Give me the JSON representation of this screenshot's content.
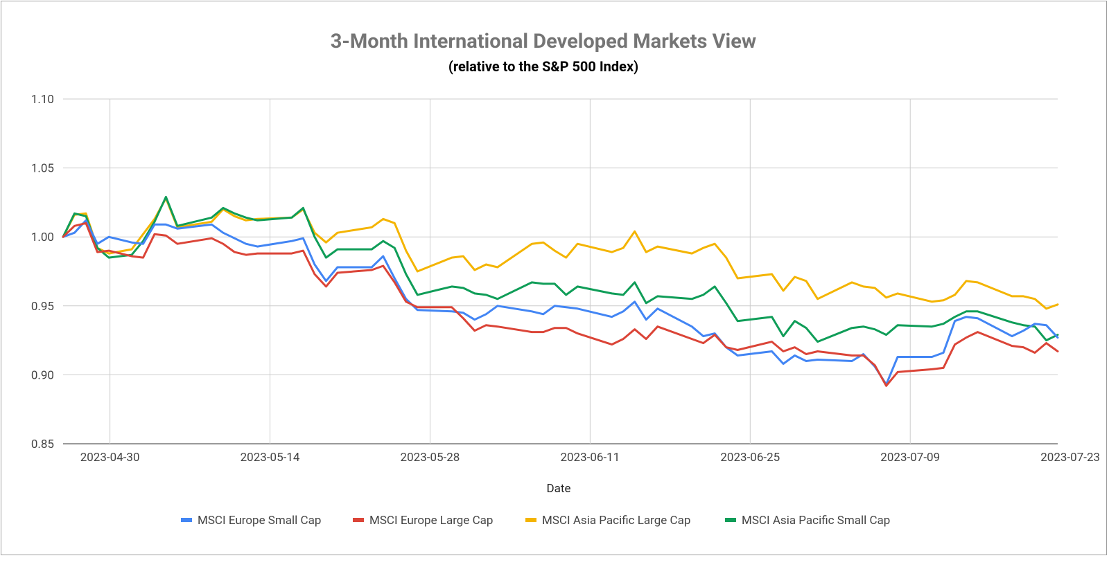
{
  "chart_data": {
    "type": "line",
    "title": "3-Month International Developed Markets View",
    "subtitle": "(relative to the S&P 500 Index)",
    "xlabel": "Date",
    "ylabel": "",
    "ylim": [
      0.85,
      1.1
    ],
    "yticks": [
      "1.10",
      "1.05",
      "1.00",
      "0.95",
      "0.90",
      "0.85"
    ],
    "ytick_values": [
      1.1,
      1.05,
      1.0,
      0.95,
      0.9,
      0.85
    ],
    "x_start_day": -4.1,
    "x_end_day": 82.9,
    "xticks": [
      {
        "label": "2023-04-30",
        "day": 0
      },
      {
        "label": "2023-05-14",
        "day": 14
      },
      {
        "label": "2023-05-28",
        "day": 28
      },
      {
        "label": "2023-06-11",
        "day": 42
      },
      {
        "label": "2023-06-25",
        "day": 56
      },
      {
        "label": "2023-07-09",
        "day": 70
      },
      {
        "label": "2023-07-23",
        "day": 84
      }
    ],
    "grid": true,
    "legend_position": "bottom",
    "series": [
      {
        "name": "MSCI Europe Small Cap",
        "color": "#4285f4",
        "points": [
          [
            -4.1,
            1.0
          ],
          [
            -3.1,
            1.003
          ],
          [
            -2.1,
            1.012
          ],
          [
            -1.1,
            0.995
          ],
          [
            -0.1,
            1.0
          ],
          [
            1.9,
            0.996
          ],
          [
            2.9,
            0.995
          ],
          [
            3.9,
            1.009
          ],
          [
            4.9,
            1.009
          ],
          [
            5.9,
            1.006
          ],
          [
            8.9,
            1.009
          ],
          [
            9.9,
            1.003
          ],
          [
            10.9,
            0.999
          ],
          [
            11.9,
            0.995
          ],
          [
            12.9,
            0.993
          ],
          [
            15.9,
            0.997
          ],
          [
            16.9,
            0.999
          ],
          [
            17.9,
            0.98
          ],
          [
            18.9,
            0.968
          ],
          [
            19.9,
            0.978
          ],
          [
            22.9,
            0.978
          ],
          [
            23.9,
            0.986
          ],
          [
            24.9,
            0.97
          ],
          [
            25.9,
            0.955
          ],
          [
            26.9,
            0.947
          ],
          [
            29.9,
            0.946
          ],
          [
            30.9,
            0.945
          ],
          [
            31.9,
            0.94
          ],
          [
            32.9,
            0.944
          ],
          [
            33.9,
            0.95
          ],
          [
            36.9,
            0.946
          ],
          [
            37.9,
            0.944
          ],
          [
            38.9,
            0.95
          ],
          [
            39.9,
            0.949
          ],
          [
            40.9,
            0.948
          ],
          [
            43.9,
            0.942
          ],
          [
            44.9,
            0.946
          ],
          [
            45.9,
            0.953
          ],
          [
            46.9,
            0.94
          ],
          [
            47.9,
            0.948
          ],
          [
            50.9,
            0.935
          ],
          [
            51.9,
            0.928
          ],
          [
            52.9,
            0.93
          ],
          [
            53.9,
            0.92
          ],
          [
            54.9,
            0.914
          ],
          [
            57.9,
            0.917
          ],
          [
            58.9,
            0.908
          ],
          [
            59.9,
            0.914
          ],
          [
            60.9,
            0.91
          ],
          [
            61.9,
            0.911
          ],
          [
            64.9,
            0.91
          ],
          [
            65.9,
            0.915
          ],
          [
            66.9,
            0.906
          ],
          [
            67.9,
            0.893
          ],
          [
            68.9,
            0.913
          ],
          [
            71.9,
            0.913
          ],
          [
            72.9,
            0.916
          ],
          [
            73.9,
            0.939
          ],
          [
            74.9,
            0.942
          ],
          [
            75.9,
            0.941
          ],
          [
            78.9,
            0.928
          ],
          [
            79.9,
            0.932
          ],
          [
            80.9,
            0.937
          ],
          [
            81.9,
            0.936
          ],
          [
            82.9,
            0.927
          ]
        ]
      },
      {
        "name": "MSCI Europe Large Cap",
        "color": "#db4437",
        "points": [
          [
            -4.1,
            1.0
          ],
          [
            -3.1,
            1.008
          ],
          [
            -2.1,
            1.01
          ],
          [
            -1.1,
            0.989
          ],
          [
            -0.1,
            0.99
          ],
          [
            1.9,
            0.986
          ],
          [
            2.9,
            0.985
          ],
          [
            3.9,
            1.002
          ],
          [
            4.9,
            1.001
          ],
          [
            5.9,
            0.995
          ],
          [
            8.9,
            0.999
          ],
          [
            9.9,
            0.995
          ],
          [
            10.9,
            0.989
          ],
          [
            11.9,
            0.987
          ],
          [
            12.9,
            0.988
          ],
          [
            15.9,
            0.988
          ],
          [
            16.9,
            0.99
          ],
          [
            17.9,
            0.973
          ],
          [
            18.9,
            0.964
          ],
          [
            19.9,
            0.974
          ],
          [
            22.9,
            0.976
          ],
          [
            23.9,
            0.979
          ],
          [
            24.9,
            0.967
          ],
          [
            25.9,
            0.953
          ],
          [
            26.9,
            0.949
          ],
          [
            29.9,
            0.949
          ],
          [
            30.9,
            0.941
          ],
          [
            31.9,
            0.932
          ],
          [
            32.9,
            0.936
          ],
          [
            33.9,
            0.935
          ],
          [
            36.9,
            0.931
          ],
          [
            37.9,
            0.931
          ],
          [
            38.9,
            0.934
          ],
          [
            39.9,
            0.934
          ],
          [
            40.9,
            0.93
          ],
          [
            43.9,
            0.922
          ],
          [
            44.9,
            0.926
          ],
          [
            45.9,
            0.933
          ],
          [
            46.9,
            0.926
          ],
          [
            47.9,
            0.935
          ],
          [
            50.9,
            0.926
          ],
          [
            51.9,
            0.923
          ],
          [
            52.9,
            0.929
          ],
          [
            53.9,
            0.92
          ],
          [
            54.9,
            0.918
          ],
          [
            57.9,
            0.924
          ],
          [
            58.9,
            0.917
          ],
          [
            59.9,
            0.92
          ],
          [
            60.9,
            0.915
          ],
          [
            61.9,
            0.917
          ],
          [
            64.9,
            0.914
          ],
          [
            65.9,
            0.914
          ],
          [
            66.9,
            0.907
          ],
          [
            67.9,
            0.892
          ],
          [
            68.9,
            0.902
          ],
          [
            71.9,
            0.904
          ],
          [
            72.9,
            0.905
          ],
          [
            73.9,
            0.922
          ],
          [
            74.9,
            0.927
          ],
          [
            75.9,
            0.931
          ],
          [
            78.9,
            0.921
          ],
          [
            79.9,
            0.92
          ],
          [
            80.9,
            0.916
          ],
          [
            81.9,
            0.923
          ],
          [
            82.9,
            0.917
          ]
        ]
      },
      {
        "name": "MSCI Asia Pacific Large Cap",
        "color": "#f4b400",
        "points": [
          [
            -4.1,
            1.0
          ],
          [
            -3.1,
            1.016
          ],
          [
            -2.1,
            1.017
          ],
          [
            -1.1,
            0.992
          ],
          [
            -0.1,
            0.988
          ],
          [
            1.9,
            0.991
          ],
          [
            2.9,
            1.002
          ],
          [
            3.9,
            1.013
          ],
          [
            4.9,
            1.028
          ],
          [
            5.9,
            1.007
          ],
          [
            8.9,
            1.011
          ],
          [
            9.9,
            1.02
          ],
          [
            10.9,
            1.015
          ],
          [
            11.9,
            1.012
          ],
          [
            12.9,
            1.013
          ],
          [
            15.9,
            1.014
          ],
          [
            16.9,
            1.02
          ],
          [
            17.9,
            1.003
          ],
          [
            18.9,
            0.996
          ],
          [
            19.9,
            1.003
          ],
          [
            22.9,
            1.007
          ],
          [
            23.9,
            1.013
          ],
          [
            24.9,
            1.01
          ],
          [
            25.9,
            0.99
          ],
          [
            26.9,
            0.975
          ],
          [
            29.9,
            0.985
          ],
          [
            30.9,
            0.986
          ],
          [
            31.9,
            0.976
          ],
          [
            32.9,
            0.98
          ],
          [
            33.9,
            0.978
          ],
          [
            36.9,
            0.995
          ],
          [
            37.9,
            0.996
          ],
          [
            38.9,
            0.99
          ],
          [
            39.9,
            0.985
          ],
          [
            40.9,
            0.995
          ],
          [
            43.9,
            0.989
          ],
          [
            44.9,
            0.992
          ],
          [
            45.9,
            1.004
          ],
          [
            46.9,
            0.989
          ],
          [
            47.9,
            0.993
          ],
          [
            50.9,
            0.988
          ],
          [
            51.9,
            0.992
          ],
          [
            52.9,
            0.995
          ],
          [
            53.9,
            0.985
          ],
          [
            54.9,
            0.97
          ],
          [
            57.9,
            0.973
          ],
          [
            58.9,
            0.961
          ],
          [
            59.9,
            0.971
          ],
          [
            60.9,
            0.968
          ],
          [
            61.9,
            0.955
          ],
          [
            64.9,
            0.967
          ],
          [
            65.9,
            0.964
          ],
          [
            66.9,
            0.963
          ],
          [
            67.9,
            0.956
          ],
          [
            68.9,
            0.959
          ],
          [
            71.9,
            0.953
          ],
          [
            72.9,
            0.954
          ],
          [
            73.9,
            0.958
          ],
          [
            74.9,
            0.968
          ],
          [
            75.9,
            0.967
          ],
          [
            78.9,
            0.957
          ],
          [
            79.9,
            0.957
          ],
          [
            80.9,
            0.955
          ],
          [
            81.9,
            0.948
          ],
          [
            82.9,
            0.951
          ]
        ]
      },
      {
        "name": "MSCI Asia Pacific Small Cap",
        "color": "#0f9d58",
        "points": [
          [
            -4.1,
            1.0
          ],
          [
            -3.1,
            1.017
          ],
          [
            -2.1,
            1.015
          ],
          [
            -1.1,
            0.992
          ],
          [
            -0.1,
            0.985
          ],
          [
            1.9,
            0.987
          ],
          [
            2.9,
            0.997
          ],
          [
            3.9,
            1.011
          ],
          [
            4.9,
            1.029
          ],
          [
            5.9,
            1.008
          ],
          [
            8.9,
            1.014
          ],
          [
            9.9,
            1.021
          ],
          [
            10.9,
            1.017
          ],
          [
            11.9,
            1.014
          ],
          [
            12.9,
            1.012
          ],
          [
            15.9,
            1.014
          ],
          [
            16.9,
            1.021
          ],
          [
            17.9,
            1.0
          ],
          [
            18.9,
            0.985
          ],
          [
            19.9,
            0.991
          ],
          [
            22.9,
            0.991
          ],
          [
            23.9,
            0.997
          ],
          [
            24.9,
            0.992
          ],
          [
            25.9,
            0.973
          ],
          [
            26.9,
            0.958
          ],
          [
            29.9,
            0.964
          ],
          [
            30.9,
            0.963
          ],
          [
            31.9,
            0.959
          ],
          [
            32.9,
            0.958
          ],
          [
            33.9,
            0.955
          ],
          [
            36.9,
            0.967
          ],
          [
            37.9,
            0.966
          ],
          [
            38.9,
            0.966
          ],
          [
            39.9,
            0.958
          ],
          [
            40.9,
            0.964
          ],
          [
            43.9,
            0.959
          ],
          [
            44.9,
            0.958
          ],
          [
            45.9,
            0.967
          ],
          [
            46.9,
            0.952
          ],
          [
            47.9,
            0.957
          ],
          [
            50.9,
            0.955
          ],
          [
            51.9,
            0.958
          ],
          [
            52.9,
            0.964
          ],
          [
            53.9,
            0.952
          ],
          [
            54.9,
            0.939
          ],
          [
            57.9,
            0.942
          ],
          [
            58.9,
            0.928
          ],
          [
            59.9,
            0.939
          ],
          [
            60.9,
            0.934
          ],
          [
            61.9,
            0.924
          ],
          [
            64.9,
            0.934
          ],
          [
            65.9,
            0.935
          ],
          [
            66.9,
            0.933
          ],
          [
            67.9,
            0.929
          ],
          [
            68.9,
            0.936
          ],
          [
            71.9,
            0.935
          ],
          [
            72.9,
            0.937
          ],
          [
            73.9,
            0.942
          ],
          [
            74.9,
            0.946
          ],
          [
            75.9,
            0.946
          ],
          [
            78.9,
            0.938
          ],
          [
            79.9,
            0.936
          ],
          [
            80.9,
            0.935
          ],
          [
            81.9,
            0.925
          ],
          [
            82.9,
            0.929
          ]
        ]
      }
    ]
  }
}
